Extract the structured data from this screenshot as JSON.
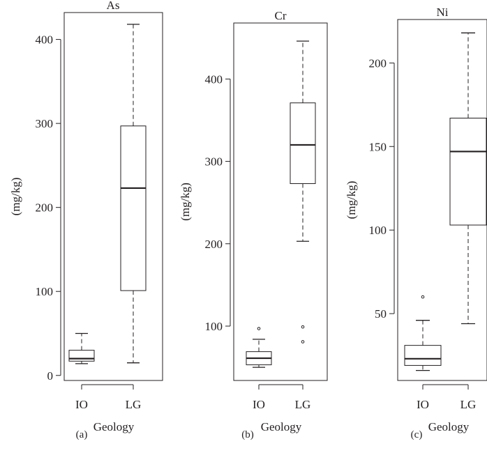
{
  "chart_data": [
    {
      "type": "box",
      "title": "As",
      "panel_label": "(a)",
      "xlabel": "Geology",
      "ylabel": "(mg/kg)",
      "categories": [
        "IO",
        "LG"
      ],
      "ylim": [
        -6,
        432
      ],
      "yticks": [
        0,
        100,
        200,
        300,
        400
      ],
      "boxes": [
        {
          "category": "IO",
          "whisker_low": 14,
          "q1": 17,
          "median": 20,
          "q3": 30,
          "whisker_high": 50,
          "outliers": []
        },
        {
          "category": "LG",
          "whisker_low": 15,
          "q1": 101,
          "median": 223,
          "q3": 297,
          "whisker_high": 418,
          "outliers": []
        }
      ]
    },
    {
      "type": "box",
      "title": "Cr",
      "panel_label": "(b)",
      "xlabel": "Geology",
      "ylabel": "(mg/kg)",
      "categories": [
        "IO",
        "LG"
      ],
      "ylim": [
        34,
        468
      ],
      "yticks": [
        100,
        200,
        300,
        400
      ],
      "boxes": [
        {
          "category": "IO",
          "whisker_low": 50,
          "q1": 53,
          "median": 61,
          "q3": 69,
          "whisker_high": 84,
          "outliers": [
            97
          ]
        },
        {
          "category": "LG",
          "whisker_low": 203,
          "q1": 273,
          "median": 320,
          "q3": 371,
          "whisker_high": 446,
          "outliers": [
            99,
            81
          ]
        }
      ]
    },
    {
      "type": "box",
      "title": "Ni",
      "panel_label": "(c)",
      "xlabel": "Geology",
      "ylabel": "(mg/kg)",
      "categories": [
        "IO",
        "LG"
      ],
      "ylim": [
        10,
        226
      ],
      "yticks": [
        50,
        100,
        150,
        200
      ],
      "boxes": [
        {
          "category": "IO",
          "whisker_low": 16,
          "q1": 19,
          "median": 23,
          "q3": 31,
          "whisker_high": 46,
          "outliers": [
            60
          ]
        },
        {
          "category": "LG",
          "whisker_low": 44,
          "q1": 103,
          "median": 147,
          "q3": 167,
          "whisker_high": 218,
          "outliers": []
        }
      ]
    }
  ]
}
